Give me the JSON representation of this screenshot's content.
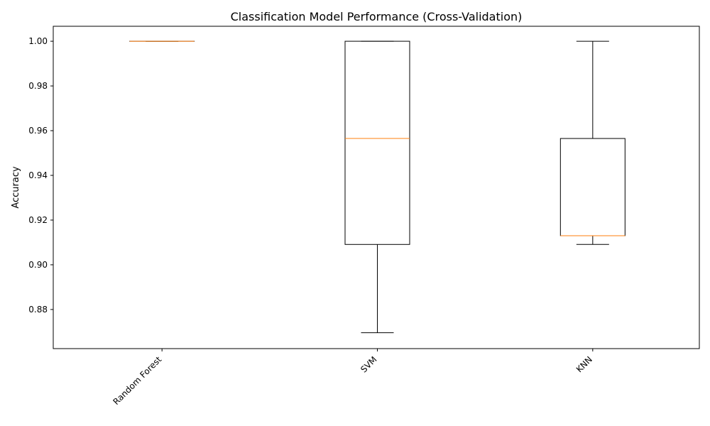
{
  "chart_data": {
    "type": "boxplot",
    "title": "Classification Model Performance (Cross-Validation)",
    "xlabel": "",
    "ylabel": "Accuracy",
    "ylim": [
      0.8625,
      1.0067
    ],
    "yticks": [
      0.88,
      0.9,
      0.92,
      0.94,
      0.96,
      0.98,
      1.0
    ],
    "ytick_labels": [
      "0.88",
      "0.90",
      "0.92",
      "0.94",
      "0.96",
      "0.98",
      "1.00"
    ],
    "categories": [
      "Random Forest",
      "SVM",
      "KNN"
    ],
    "boxes": [
      {
        "whisker_low": 1.0,
        "q1": 1.0,
        "median": 1.0,
        "q3": 1.0,
        "whisker_high": 1.0
      },
      {
        "whisker_low": 0.8696,
        "q1": 0.9091,
        "median": 0.9565,
        "q3": 1.0,
        "whisker_high": 1.0
      },
      {
        "whisker_low": 0.9091,
        "q1": 0.913,
        "median": 0.913,
        "q3": 0.9565,
        "whisker_high": 1.0
      }
    ],
    "colors": {
      "box": "#000000",
      "median": "#ff7f0e"
    },
    "grid": false
  }
}
